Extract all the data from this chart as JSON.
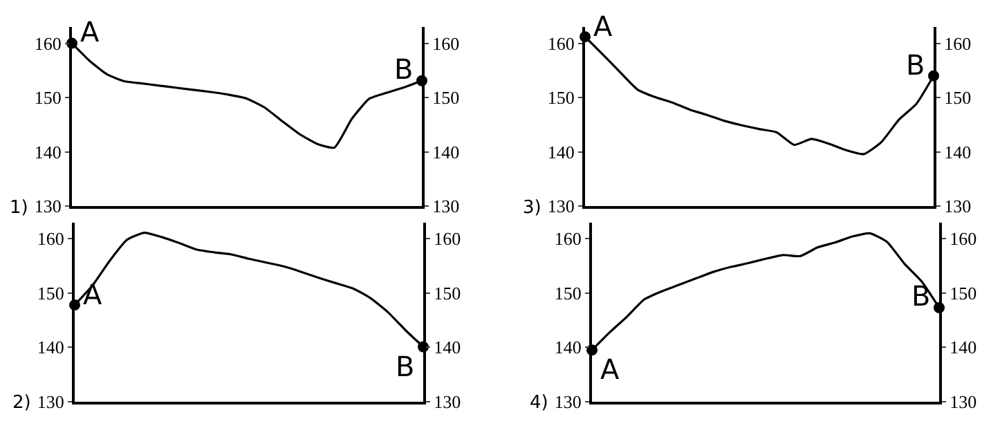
{
  "chart_data": [
    {
      "type": "line",
      "title": "1)",
      "categories": [
        null,
        null,
        null,
        null,
        null,
        null,
        null,
        null,
        null,
        null,
        null,
        null,
        null,
        null,
        null,
        null,
        null,
        null,
        null,
        null,
        null
      ],
      "series": [
        {
          "color": "#000000",
          "values": [
            160.0,
            156.8,
            154.3,
            153.0,
            152.6,
            152.2,
            151.8,
            151.4,
            151.0,
            150.5,
            149.8,
            148.2,
            145.7,
            143.3,
            141.5,
            140.8,
            146.1,
            149.8,
            150.9,
            151.9,
            153.1
          ]
        },
        {
          "type": "scatter",
          "marker": "circle",
          "color": "#000000",
          "axis": "y2",
          "values": [
            160.0,
            null,
            null,
            null,
            null,
            null,
            null,
            null,
            null,
            null,
            null,
            null,
            null,
            null,
            null,
            null,
            null,
            null,
            null,
            null,
            153.1
          ]
        }
      ],
      "annotations": [
        "A",
        "B"
      ],
      "ylim": [
        130,
        163
      ],
      "yticks": [
        130,
        140,
        150,
        160
      ],
      "y2lim": [
        130,
        163
      ],
      "y2ticks": [
        130,
        140,
        150,
        160
      ],
      "tick_labels": "y",
      "marker": "none",
      "line_style": "solid"
    },
    {
      "type": "line",
      "title": "3)",
      "categories": [
        null,
        null,
        null,
        null,
        null,
        null,
        null,
        null,
        null,
        null,
        null,
        null,
        null,
        null,
        null,
        null,
        null,
        null,
        null,
        null,
        null
      ],
      "series": [
        {
          "color": "#000000",
          "values": [
            161.2,
            158.0,
            154.7,
            151.5,
            150.1,
            149.1,
            147.8,
            146.8,
            145.7,
            144.9,
            144.2,
            143.6,
            141.3,
            142.4,
            141.5,
            140.3,
            139.6,
            141.8,
            145.9,
            148.8,
            154.0
          ]
        },
        {
          "type": "scatter",
          "marker": "circle",
          "color": "#000000",
          "axis": "y2",
          "values": [
            161.2,
            null,
            null,
            null,
            null,
            null,
            null,
            null,
            null,
            null,
            null,
            null,
            null,
            null,
            null,
            null,
            null,
            null,
            null,
            null,
            154.0
          ]
        }
      ],
      "annotations": [
        "A",
        "B"
      ],
      "ylim": [
        130,
        163
      ],
      "yticks": [
        130,
        140,
        150,
        160
      ],
      "y2lim": [
        130,
        163
      ],
      "y2ticks": [
        130,
        140,
        150,
        160
      ],
      "tick_labels": "y",
      "marker": "none",
      "line_style": "solid"
    },
    {
      "type": "line",
      "title": "2)",
      "categories": [
        null,
        null,
        null,
        null,
        null,
        null,
        null,
        null,
        null,
        null,
        null,
        null,
        null,
        null,
        null,
        null,
        null,
        null,
        null,
        null,
        null
      ],
      "series": [
        {
          "color": "#000000",
          "values": [
            147.8,
            151.3,
            155.9,
            159.8,
            161.1,
            160.3,
            159.2,
            158.0,
            157.5,
            157.1,
            156.3,
            155.6,
            154.9,
            153.9,
            152.8,
            151.8,
            150.8,
            149.0,
            146.4,
            143.1,
            140.1
          ]
        },
        {
          "type": "scatter",
          "marker": "circle",
          "color": "#000000",
          "axis": "y2",
          "values": [
            147.8,
            null,
            null,
            null,
            null,
            null,
            null,
            null,
            null,
            null,
            null,
            null,
            null,
            null,
            null,
            null,
            null,
            null,
            null,
            null,
            140.1
          ]
        }
      ],
      "annotations": [
        "A",
        "B"
      ],
      "ylim": [
        130,
        163
      ],
      "yticks": [
        130,
        140,
        150,
        160
      ],
      "y2lim": [
        130,
        163
      ],
      "y2ticks": [
        130,
        140,
        150,
        160
      ],
      "tick_labels": "y",
      "marker": "none",
      "line_style": "solid"
    },
    {
      "type": "line",
      "title": "4)",
      "categories": [
        null,
        null,
        null,
        null,
        null,
        null,
        null,
        null,
        null,
        null,
        null,
        null,
        null,
        null,
        null,
        null,
        null,
        null,
        null,
        null,
        null
      ],
      "series": [
        {
          "color": "#000000",
          "values": [
            139.5,
            142.7,
            145.6,
            148.8,
            150.3,
            151.5,
            152.7,
            153.9,
            154.8,
            155.5,
            156.3,
            157.0,
            156.8,
            158.4,
            159.3,
            160.4,
            161.0,
            159.4,
            155.4,
            152.1,
            147.3
          ]
        },
        {
          "type": "scatter",
          "marker": "circle",
          "color": "#000000",
          "axis": "y2",
          "values": [
            139.5,
            null,
            null,
            null,
            null,
            null,
            null,
            null,
            null,
            null,
            null,
            null,
            null,
            null,
            null,
            null,
            null,
            null,
            null,
            null,
            147.3
          ]
        }
      ],
      "annotations": [
        "A",
        "B"
      ],
      "ylim": [
        130,
        163
      ],
      "yticks": [
        130,
        140,
        150,
        160
      ],
      "y2lim": [
        130,
        163
      ],
      "y2ticks": [
        130,
        140,
        150,
        160
      ],
      "tick_labels": "y",
      "marker": "none",
      "line_style": "solid"
    }
  ]
}
